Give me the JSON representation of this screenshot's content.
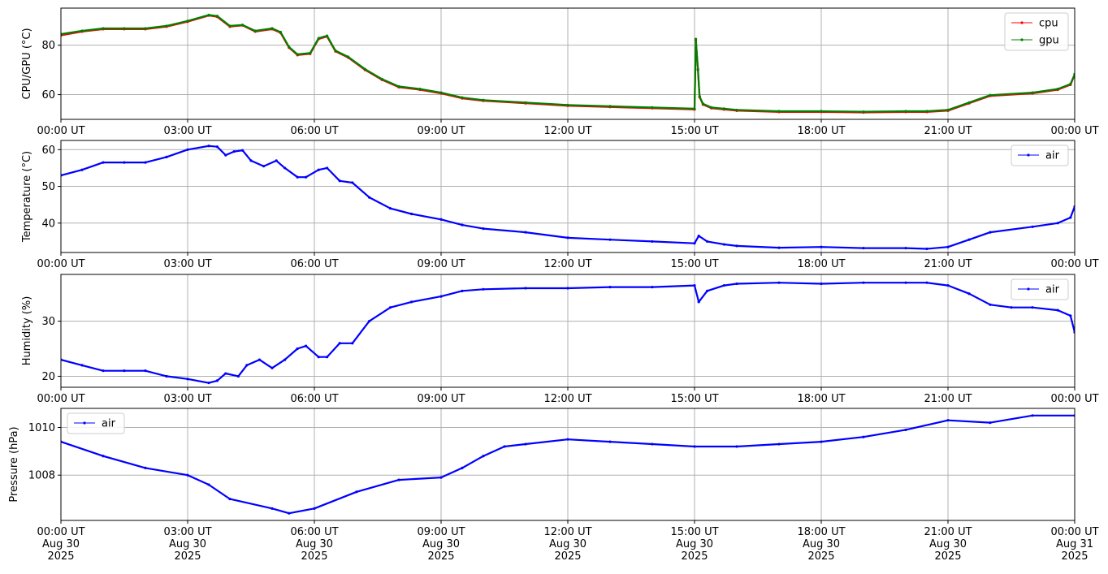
{
  "chart_data": [
    {
      "type": "line",
      "ylabel": "CPU/GPU (°C)",
      "ylim": [
        50,
        95
      ],
      "yticks": [
        60,
        80
      ],
      "xlim": [
        "2025-08-30T00:00",
        "2025-08-31T00:00"
      ],
      "xtick_labels": [
        "00:00 UT",
        "03:00 UT",
        "06:00 UT",
        "09:00 UT",
        "12:00 UT",
        "15:00 UT",
        "18:00 UT",
        "21:00 UT",
        "00:00 UT"
      ],
      "grid": true,
      "legend": "top-right",
      "series": [
        {
          "name": "cpu",
          "color": "#ff0000",
          "x": [
            0,
            0.5,
            1,
            1.5,
            2,
            2.5,
            3,
            3.5,
            3.7,
            4,
            4.3,
            4.6,
            5,
            5.2,
            5.4,
            5.6,
            5.9,
            6.1,
            6.3,
            6.5,
            6.8,
            7.2,
            7.6,
            8,
            8.5,
            9,
            9.5,
            10,
            11,
            12,
            13,
            14,
            15,
            15.03,
            15.08,
            15.12,
            15.2,
            15.4,
            15.7,
            16,
            17,
            18,
            19,
            20,
            20.5,
            21,
            21.5,
            22,
            23,
            23.6,
            23.9,
            24
          ],
          "y": [
            84,
            85.5,
            86.5,
            86.5,
            86.5,
            87.5,
            89.5,
            92,
            91.5,
            87.5,
            88,
            85.5,
            86.5,
            85,
            79,
            76,
            76.5,
            82.5,
            83.5,
            77.5,
            75,
            70,
            66,
            63,
            62,
            60.5,
            58.5,
            57.5,
            56.5,
            55.5,
            55,
            54.5,
            54,
            82,
            70,
            59,
            56,
            54.5,
            54,
            53.5,
            53,
            53,
            52.8,
            53,
            53,
            53.5,
            56.5,
            59.5,
            60.5,
            62,
            64,
            68
          ]
        },
        {
          "name": "gpu",
          "color": "#008000",
          "x": [
            0,
            0.5,
            1,
            1.5,
            2,
            2.5,
            3,
            3.5,
            3.7,
            4,
            4.3,
            4.6,
            5,
            5.2,
            5.4,
            5.6,
            5.9,
            6.1,
            6.3,
            6.5,
            6.8,
            7.2,
            7.6,
            8,
            8.5,
            9,
            9.5,
            10,
            11,
            12,
            13,
            14,
            15,
            15.03,
            15.08,
            15.12,
            15.2,
            15.4,
            15.7,
            16,
            17,
            18,
            19,
            20,
            20.5,
            21,
            21.5,
            22,
            23,
            23.6,
            23.9,
            24
          ],
          "y": [
            84.5,
            85.8,
            86.8,
            86.8,
            86.8,
            87.8,
            89.8,
            92.2,
            91.8,
            87.8,
            88.2,
            85.8,
            86.8,
            85.3,
            79.3,
            76.3,
            76.8,
            82.8,
            83.8,
            77.8,
            75.3,
            70.3,
            66.3,
            63.3,
            62.3,
            60.8,
            58.8,
            57.8,
            56.8,
            55.8,
            55.3,
            54.8,
            54.3,
            82.5,
            70.3,
            59.3,
            56.3,
            54.8,
            54.3,
            53.8,
            53.3,
            53.3,
            53.1,
            53.3,
            53.3,
            53.8,
            56.8,
            59.8,
            60.8,
            62.3,
            64.3,
            68.3
          ]
        }
      ]
    },
    {
      "type": "line",
      "ylabel": "Temperature (°C)",
      "ylim": [
        32,
        62.5
      ],
      "yticks": [
        40,
        50,
        60
      ],
      "xlim": [
        "2025-08-30T00:00",
        "2025-08-31T00:00"
      ],
      "xtick_labels": [
        "00:00 UT",
        "03:00 UT",
        "06:00 UT",
        "09:00 UT",
        "12:00 UT",
        "15:00 UT",
        "18:00 UT",
        "21:00 UT",
        "00:00 UT"
      ],
      "grid": true,
      "legend": "top-right",
      "series": [
        {
          "name": "air",
          "color": "#0000ff",
          "x": [
            0,
            0.5,
            1,
            1.5,
            2,
            2.5,
            3,
            3.5,
            3.7,
            3.9,
            4.1,
            4.3,
            4.5,
            4.8,
            5.1,
            5.3,
            5.6,
            5.8,
            6.1,
            6.3,
            6.6,
            6.9,
            7.3,
            7.8,
            8.3,
            9,
            9.5,
            10,
            11,
            12,
            13,
            14,
            15,
            15.1,
            15.3,
            15.7,
            16,
            17,
            18,
            19,
            20,
            20.5,
            21,
            21.5,
            22,
            23,
            23.6,
            23.9,
            24
          ],
          "y": [
            53,
            54.5,
            56.5,
            56.5,
            56.5,
            58,
            60,
            61,
            60.8,
            58.5,
            59.5,
            59.8,
            57,
            55.5,
            57,
            55,
            52.5,
            52.5,
            54.5,
            55,
            51.5,
            51,
            47,
            44,
            42.5,
            41,
            39.5,
            38.5,
            37.5,
            36,
            35.5,
            35,
            34.5,
            36.5,
            35,
            34.2,
            33.8,
            33.3,
            33.5,
            33.2,
            33.2,
            33,
            33.5,
            35.5,
            37.5,
            39,
            40,
            41.5,
            44.5
          ]
        }
      ]
    },
    {
      "type": "line",
      "ylabel": "Humidity (%)",
      "ylim": [
        18,
        38.5
      ],
      "yticks": [
        20,
        30
      ],
      "xlim": [
        "2025-08-30T00:00",
        "2025-08-31T00:00"
      ],
      "xtick_labels": [
        "00:00 UT",
        "03:00 UT",
        "06:00 UT",
        "09:00 UT",
        "12:00 UT",
        "15:00 UT",
        "18:00 UT",
        "21:00 UT",
        "00:00 UT"
      ],
      "grid": true,
      "legend": "top-right",
      "series": [
        {
          "name": "air",
          "color": "#0000ff",
          "x": [
            0,
            0.5,
            1,
            1.5,
            2,
            2.5,
            3,
            3.5,
            3.7,
            3.9,
            4.2,
            4.4,
            4.7,
            5,
            5.3,
            5.6,
            5.8,
            6.1,
            6.3,
            6.6,
            6.9,
            7.3,
            7.8,
            8.3,
            9,
            9.5,
            10,
            11,
            12,
            13,
            14,
            15,
            15.1,
            15.3,
            15.7,
            16,
            17,
            18,
            19,
            20,
            20.5,
            21,
            21.5,
            22,
            22.5,
            23,
            23.6,
            23.9,
            24
          ],
          "y": [
            23,
            22,
            21,
            21,
            21,
            20,
            19.5,
            18.8,
            19.2,
            20.5,
            20,
            22,
            23,
            21.5,
            23,
            25,
            25.5,
            23.5,
            23.5,
            26,
            26,
            30,
            32.5,
            33.5,
            34.5,
            35.5,
            35.8,
            36,
            36,
            36.2,
            36.2,
            36.5,
            33.5,
            35.5,
            36.5,
            36.8,
            37,
            36.8,
            37,
            37,
            37,
            36.5,
            35,
            33,
            32.5,
            32.5,
            32,
            31,
            28
          ]
        }
      ]
    },
    {
      "type": "line",
      "ylabel": "Pressure (hPa)",
      "ylim": [
        1006.1,
        1010.8
      ],
      "yticks": [
        1008,
        1010
      ],
      "xlim": [
        "2025-08-30T00:00",
        "2025-08-31T00:00"
      ],
      "xtick_labels": [
        "00:00 UT\nAug 30\n2025",
        "03:00 UT\nAug 30\n2025",
        "06:00 UT\nAug 30\n2025",
        "09:00 UT\nAug 30\n2025",
        "12:00 UT\nAug 30\n2025",
        "15:00 UT\nAug 30\n2025",
        "18:00 UT\nAug 30\n2025",
        "21:00 UT\nAug 30\n2025",
        "00:00 UT\nAug 31\n2025"
      ],
      "grid": true,
      "legend": "top-left",
      "series": [
        {
          "name": "air",
          "color": "#0000ff",
          "x": [
            0,
            1,
            2,
            3,
            3.5,
            4,
            5,
            5.4,
            6,
            7,
            8,
            9,
            9.5,
            10,
            10.5,
            11,
            12,
            13,
            14,
            15,
            16,
            17,
            18,
            19,
            20,
            21,
            22,
            23,
            24
          ],
          "y": [
            1009.4,
            1008.8,
            1008.3,
            1008,
            1007.6,
            1007.0,
            1006.6,
            1006.4,
            1006.6,
            1007.3,
            1007.8,
            1007.9,
            1008.3,
            1008.8,
            1009.2,
            1009.3,
            1009.5,
            1009.4,
            1009.3,
            1009.2,
            1009.2,
            1009.3,
            1009.4,
            1009.6,
            1009.9,
            1010.3,
            1010.2,
            1010.5,
            1010.5
          ]
        }
      ]
    }
  ]
}
